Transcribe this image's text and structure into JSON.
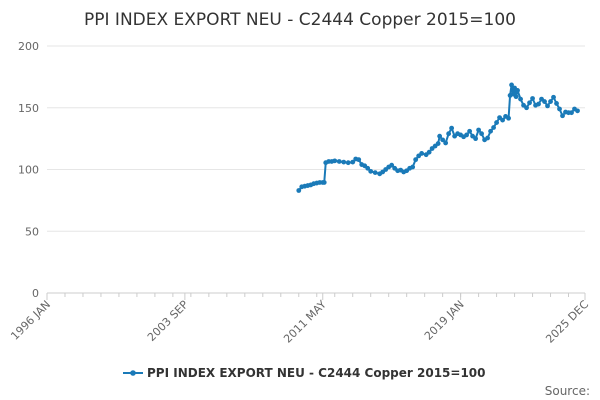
{
  "chart_data": {
    "type": "line",
    "title": "PPI INDEX EXPORT NEU - C2444 Copper 2015=100",
    "xlabel": "",
    "ylabel": "",
    "ylim": [
      0,
      200
    ],
    "xlim": [
      "1996-01",
      "2025-12"
    ],
    "y_ticks": [
      "0",
      "50",
      "100",
      "150",
      "200"
    ],
    "x_ticks": [
      {
        "date": "1996-01",
        "label": "1996 JAN"
      },
      {
        "date": "2003-09",
        "label": "2003 SEP"
      },
      {
        "date": "2011-05",
        "label": "2011 MAY"
      },
      {
        "date": "2019-01",
        "label": "2019 JAN"
      },
      {
        "date": "2025-12",
        "label": "2025 DEC"
      }
    ],
    "grid": "horizontal",
    "legend": "bottom",
    "series": [
      {
        "name": "PPI INDEX EXPORT NEU - C2444 Copper 2015=100",
        "color": "#1a7ab8",
        "points": [
          [
            "2010-01",
            83
          ],
          [
            "2010-03",
            86
          ],
          [
            "2010-05",
            86.5
          ],
          [
            "2010-07",
            87
          ],
          [
            "2010-09",
            87.5
          ],
          [
            "2010-11",
            88.5
          ],
          [
            "2011-01",
            89
          ],
          [
            "2011-03",
            89.5
          ],
          [
            "2011-05",
            89.5
          ],
          [
            "2011-06",
            89.5
          ],
          [
            "2011-07",
            105.5
          ],
          [
            "2011-09",
            106.5
          ],
          [
            "2011-11",
            106.5
          ],
          [
            "2012-01",
            107
          ],
          [
            "2012-04",
            106.5
          ],
          [
            "2012-07",
            106
          ],
          [
            "2012-10",
            105.5
          ],
          [
            "2013-01",
            106
          ],
          [
            "2013-03",
            108.5
          ],
          [
            "2013-05",
            108
          ],
          [
            "2013-07",
            104
          ],
          [
            "2013-09",
            103
          ],
          [
            "2013-11",
            101
          ],
          [
            "2014-01",
            98.5
          ],
          [
            "2014-04",
            97.5
          ],
          [
            "2014-07",
            96.5
          ],
          [
            "2014-09",
            98
          ],
          [
            "2014-11",
            100
          ],
          [
            "2015-01",
            102
          ],
          [
            "2015-03",
            103.5
          ],
          [
            "2015-05",
            101
          ],
          [
            "2015-07",
            99
          ],
          [
            "2015-09",
            99.5
          ],
          [
            "2015-11",
            98
          ],
          [
            "2016-01",
            99
          ],
          [
            "2016-03",
            101
          ],
          [
            "2016-05",
            102
          ],
          [
            "2016-07",
            108
          ],
          [
            "2016-09",
            111
          ],
          [
            "2016-11",
            113
          ],
          [
            "2017-02",
            112
          ],
          [
            "2017-04",
            114
          ],
          [
            "2017-06",
            117
          ],
          [
            "2017-08",
            119
          ],
          [
            "2017-10",
            121
          ],
          [
            "2017-11",
            127
          ],
          [
            "2018-01",
            124
          ],
          [
            "2018-03",
            121.5
          ],
          [
            "2018-05",
            129
          ],
          [
            "2018-07",
            133.5
          ],
          [
            "2018-09",
            127
          ],
          [
            "2018-11",
            129
          ],
          [
            "2019-01",
            128
          ],
          [
            "2019-03",
            126.5
          ],
          [
            "2019-05",
            128
          ],
          [
            "2019-07",
            131
          ],
          [
            "2019-09",
            127
          ],
          [
            "2019-11",
            125
          ],
          [
            "2020-01",
            132
          ],
          [
            "2020-03",
            129
          ],
          [
            "2020-05",
            124
          ],
          [
            "2020-07",
            125.5
          ],
          [
            "2020-09",
            131
          ],
          [
            "2020-11",
            134
          ],
          [
            "2021-01",
            138
          ],
          [
            "2021-03",
            142
          ],
          [
            "2021-05",
            140
          ],
          [
            "2021-07",
            143
          ],
          [
            "2021-09",
            141.5
          ],
          [
            "2021-10",
            160
          ],
          [
            "2021-11",
            168.5
          ],
          [
            "2021-12",
            161
          ],
          [
            "2022-01",
            166
          ],
          [
            "2022-02",
            159
          ],
          [
            "2022-03",
            164
          ],
          [
            "2022-05",
            157
          ],
          [
            "2022-07",
            152
          ],
          [
            "2022-09",
            150
          ],
          [
            "2022-11",
            154
          ],
          [
            "2023-01",
            157.5
          ],
          [
            "2023-03",
            152
          ],
          [
            "2023-05",
            153
          ],
          [
            "2023-07",
            157
          ],
          [
            "2023-09",
            155
          ],
          [
            "2023-11",
            151.5
          ],
          [
            "2024-01",
            155
          ],
          [
            "2024-03",
            158.5
          ],
          [
            "2024-05",
            153.5
          ],
          [
            "2024-07",
            149
          ],
          [
            "2024-09",
            143.5
          ],
          [
            "2024-11",
            146.5
          ],
          [
            "2025-01",
            146
          ],
          [
            "2025-03",
            146
          ],
          [
            "2025-05",
            149
          ],
          [
            "2025-07",
            147.5
          ]
        ]
      }
    ]
  },
  "legend": {
    "label": "PPI INDEX EXPORT NEU - C2444 Copper 2015=100"
  },
  "footer": {
    "source_label": "Source:"
  }
}
